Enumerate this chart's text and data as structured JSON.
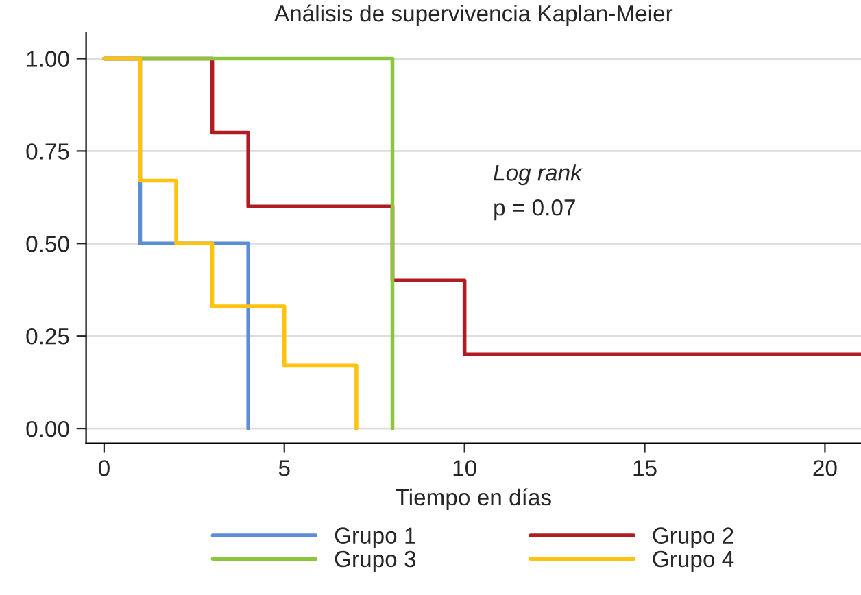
{
  "chart_data": {
    "type": "step",
    "title": "Análisis de supervivencia Kaplan-Meier",
    "xlabel": "Tiempo en días",
    "series": [
      {
        "name": "Grupo 1",
        "color": "#5b8ed6",
        "x": [
          0,
          1,
          4
        ],
        "values": [
          1.0,
          0.5,
          0.0
        ]
      },
      {
        "name": "Grupo 2",
        "color": "#b01c22",
        "x": [
          0,
          3,
          4,
          8,
          10,
          21
        ],
        "values": [
          1.0,
          0.8,
          0.6,
          0.4,
          0.2,
          0.2
        ]
      },
      {
        "name": "Grupo 3",
        "color": "#8cc63e",
        "x": [
          0,
          8
        ],
        "values": [
          1.0,
          0.0
        ]
      },
      {
        "name": "Grupo 4",
        "color": "#ffc20e",
        "x": [
          0,
          1,
          2,
          3,
          5,
          7
        ],
        "values": [
          1.0,
          0.67,
          0.5,
          0.33,
          0.17,
          0.0
        ]
      }
    ],
    "annotations": [
      "Log rank",
      "p = 0.07"
    ],
    "xlim": [
      -0.5,
      21
    ],
    "xticks": [
      0,
      5,
      10,
      15,
      20
    ],
    "ylim": [
      -0.04,
      1.07
    ],
    "yticks": [
      {
        "value": 0,
        "label": "0.00"
      },
      {
        "value": 0.25,
        "label": "0.25"
      },
      {
        "value": 0.5,
        "label": "0.50"
      },
      {
        "value": 0.75,
        "label": "0.75"
      },
      {
        "value": 1,
        "label": "1.00"
      }
    ],
    "grid": "y",
    "legend": "bottom",
    "line_style": "solid"
  }
}
